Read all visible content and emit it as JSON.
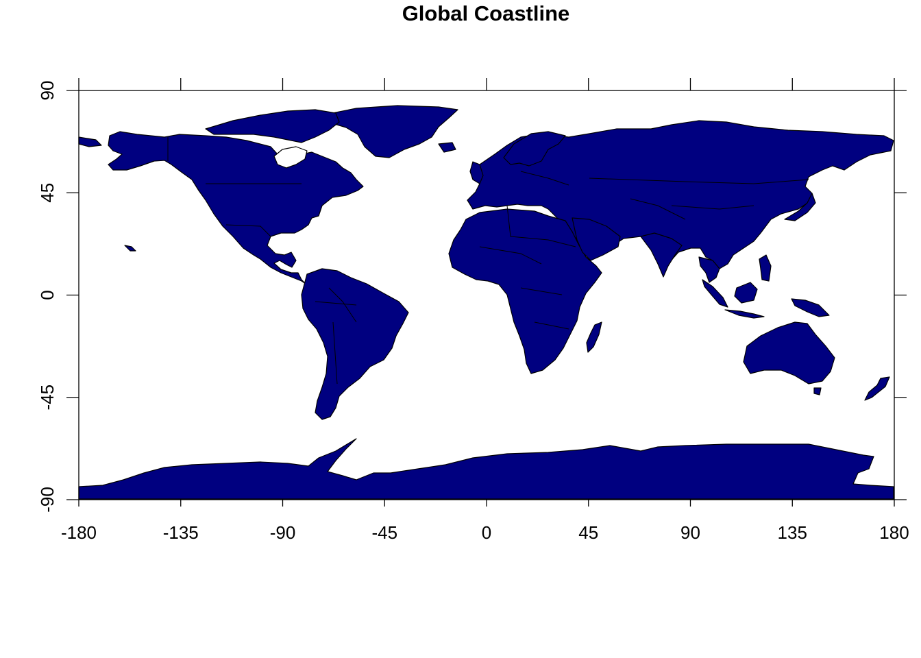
{
  "title": "Global Coastline",
  "colors": {
    "land": "#000080",
    "border": "#000000",
    "background": "#ffffff"
  },
  "map": {
    "projection": "equirectangular",
    "xlim": [
      -180,
      180
    ],
    "ylim": [
      -90,
      90
    ],
    "x_ticks": [
      "-180",
      "-135",
      "-90",
      "-45",
      "0",
      "45",
      "90",
      "135",
      "180"
    ],
    "y_ticks": [
      "-90",
      "-45",
      "0",
      "45",
      "90"
    ],
    "content": "world land polygons with country borders; Antarctica along the bottom"
  }
}
